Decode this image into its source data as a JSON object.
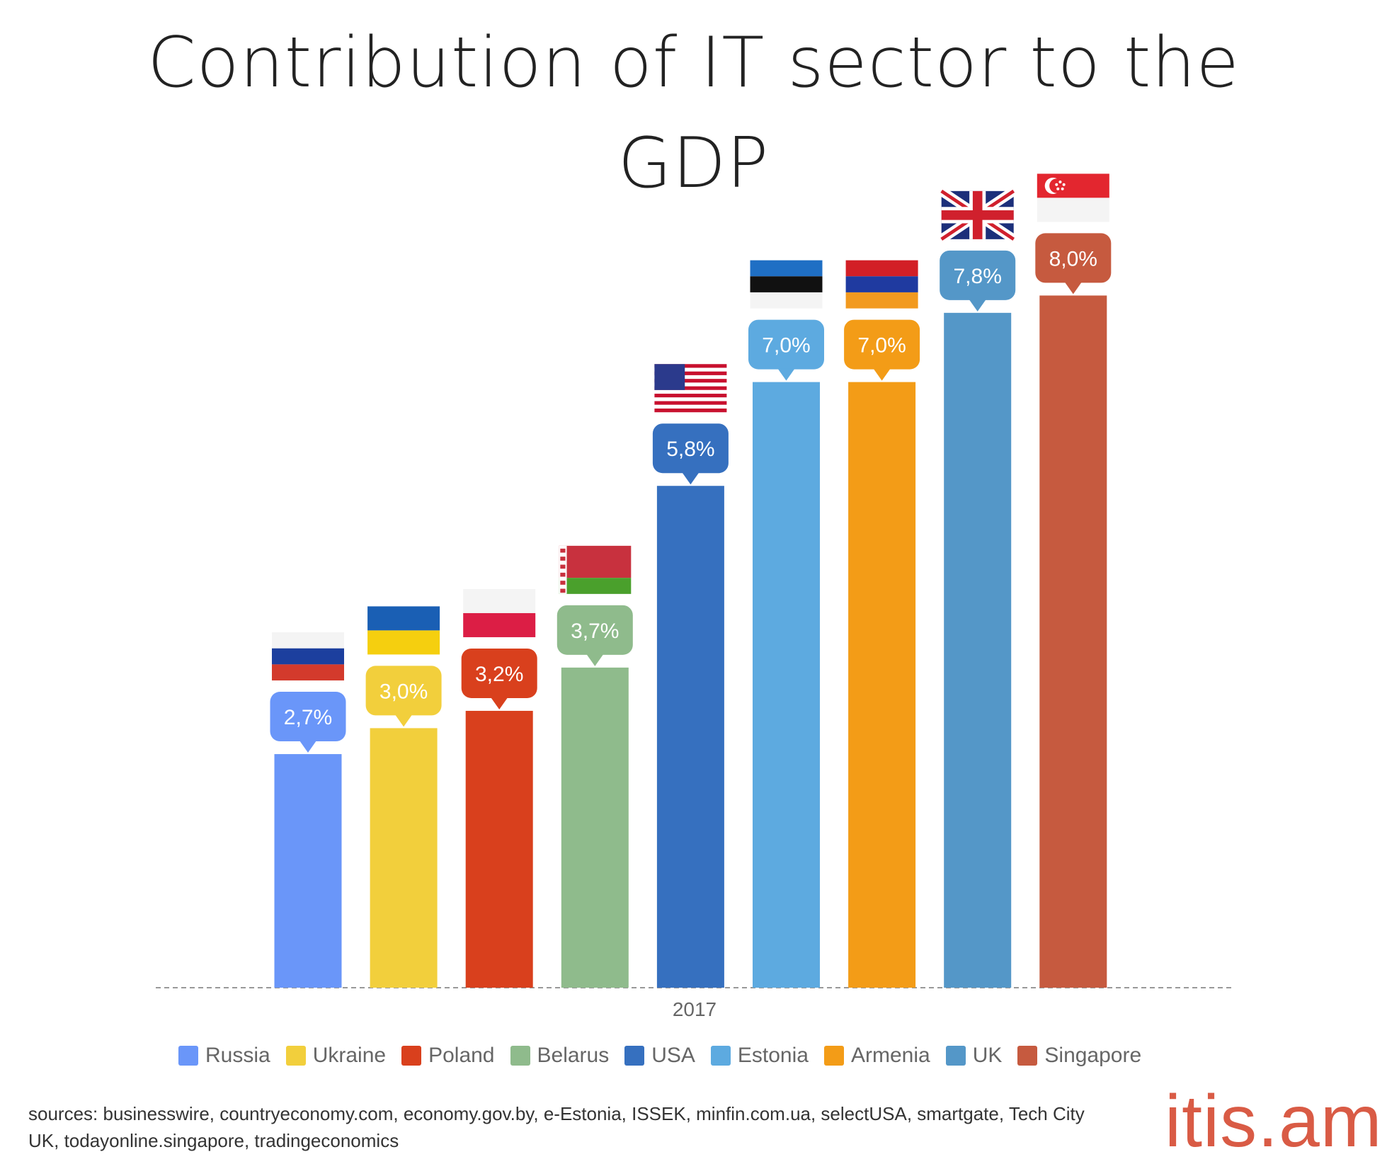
{
  "title_line1": "Contribution of IT sector to the",
  "title_line2": "GDP",
  "chart_data": {
    "type": "bar",
    "title": "Contribution of IT sector to the GDP",
    "categories": [
      "2017"
    ],
    "xlabel": "2017",
    "ylabel": "",
    "ylim": [
      0,
      8.0
    ],
    "grid": false,
    "legend_placement": "bottom",
    "series": [
      {
        "name": "Russia",
        "value": 2.7,
        "label": "2,7%",
        "color": "#6a96f9",
        "flag": "russia-flag"
      },
      {
        "name": "Ukraine",
        "value": 3.0,
        "label": "3,0%",
        "color": "#f2cf3c",
        "flag": "ukraine-flag"
      },
      {
        "name": "Poland",
        "value": 3.2,
        "label": "3,2%",
        "color": "#d9401d",
        "flag": "poland-flag"
      },
      {
        "name": "Belarus",
        "value": 3.7,
        "label": "3,7%",
        "color": "#8fbb8c",
        "flag": "belarus-flag"
      },
      {
        "name": "USA",
        "value": 5.8,
        "label": "5,8%",
        "color": "#3670bf",
        "flag": "usa-flag"
      },
      {
        "name": "Estonia",
        "value": 7.0,
        "label": "7,0%",
        "color": "#5daae0",
        "flag": "estonia-flag"
      },
      {
        "name": "Armenia",
        "value": 7.0,
        "label": "7,0%",
        "color": "#f39c17",
        "flag": "armenia-flag"
      },
      {
        "name": "UK",
        "value": 7.8,
        "label": "7,8%",
        "color": "#5497c8",
        "flag": "uk-flag"
      },
      {
        "name": "Singapore",
        "value": 8.0,
        "label": "8,0%",
        "color": "#c65a3f",
        "flag": "singapore-flag"
      }
    ]
  },
  "sources": "sources: businesswire, countryeconomy.com, economy.gov.by, e-Estonia, ISSEK, minfin.com.ua, selectUSA, smartgate, Tech City UK, todayonline.singapore, tradingeconomics",
  "logo": "itis.am",
  "logo_color": "#d95b45"
}
